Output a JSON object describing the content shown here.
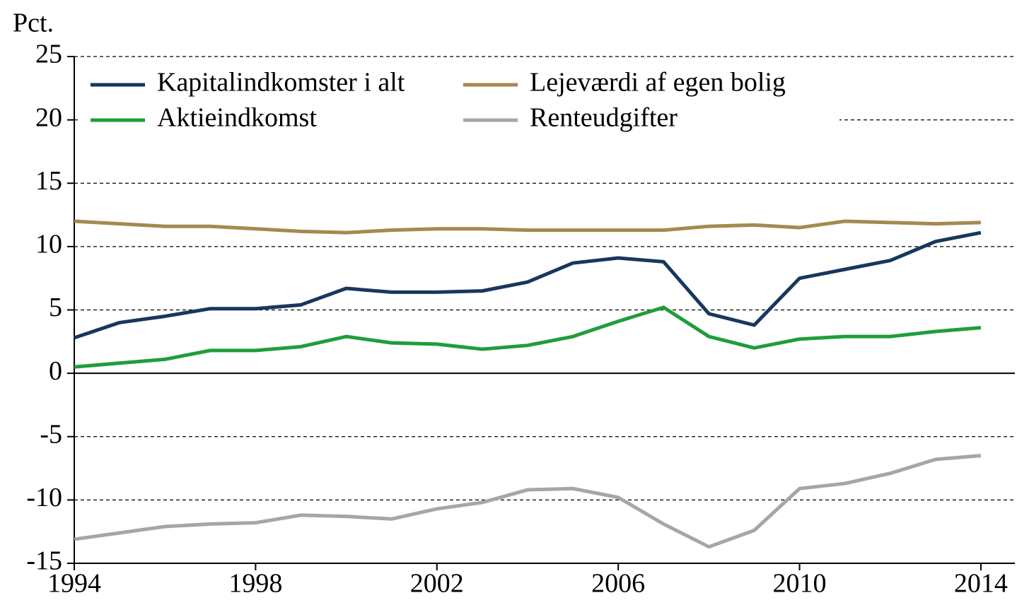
{
  "chart_data": {
    "type": "line",
    "y_label": "Pct.",
    "x": [
      1994,
      1995,
      1996,
      1997,
      1998,
      1999,
      2000,
      2001,
      2002,
      2003,
      2004,
      2005,
      2006,
      2007,
      2008,
      2009,
      2010,
      2011,
      2012,
      2013,
      2014
    ],
    "series": [
      {
        "name": "Kapitalindkomster i alt",
        "color": "#17375e",
        "values": [
          2.8,
          4.0,
          4.5,
          5.1,
          5.1,
          5.4,
          6.7,
          6.4,
          6.4,
          6.5,
          7.2,
          8.7,
          9.1,
          8.8,
          4.7,
          3.8,
          7.5,
          8.2,
          8.9,
          10.4,
          11.1
        ]
      },
      {
        "name": "Lejeværdi af egen bolig",
        "color": "#a5894f",
        "values": [
          12.0,
          11.8,
          11.6,
          11.6,
          11.4,
          11.2,
          11.1,
          11.3,
          11.4,
          11.4,
          11.3,
          11.3,
          11.3,
          11.3,
          11.6,
          11.7,
          11.5,
          12.0,
          11.9,
          11.8,
          11.9
        ]
      },
      {
        "name": "Aktieindkomst",
        "color": "#1e9e3b",
        "values": [
          0.5,
          0.8,
          1.1,
          1.8,
          1.8,
          2.1,
          2.9,
          2.4,
          2.3,
          1.9,
          2.2,
          2.9,
          4.1,
          5.2,
          2.9,
          2.0,
          2.7,
          2.9,
          2.9,
          3.3,
          3.6
        ]
      },
      {
        "name": "Renteudgifter",
        "color": "#a6a6a6",
        "values": [
          -13.1,
          -12.6,
          -12.1,
          -11.9,
          -11.8,
          -11.2,
          -11.3,
          -11.5,
          -10.7,
          -10.2,
          -9.2,
          -9.1,
          -9.8,
          -11.9,
          -13.7,
          -12.4,
          -9.1,
          -8.7,
          -7.9,
          -6.8,
          -6.5
        ]
      }
    ],
    "xlim": [
      1994,
      2014.75
    ],
    "xticks": [
      1994,
      1998,
      2002,
      2006,
      2010,
      2014
    ],
    "ylim": [
      -15,
      25
    ],
    "yticks": [
      -15,
      -10,
      -5,
      0,
      5,
      10,
      15,
      20,
      25
    ],
    "grid": true,
    "legend": "upper left"
  }
}
